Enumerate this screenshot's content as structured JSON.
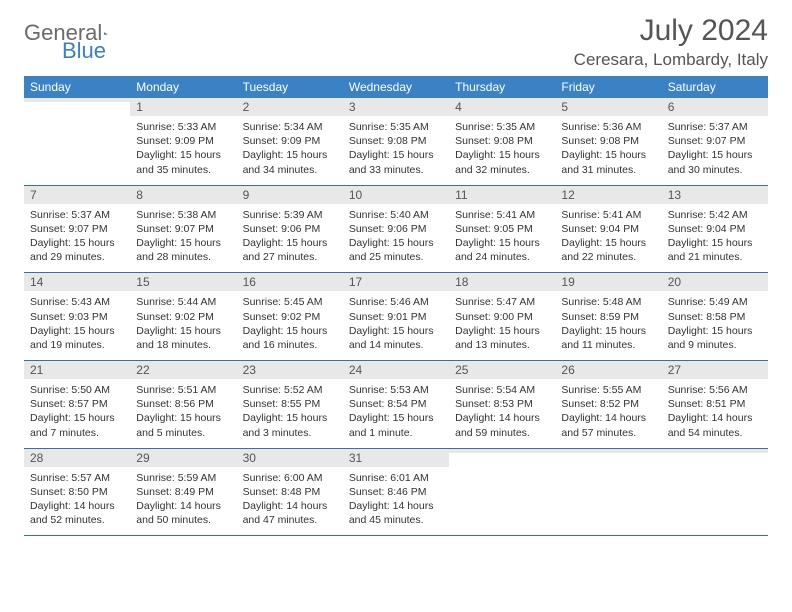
{
  "brand": {
    "name_general": "General",
    "name_blue": "Blue"
  },
  "title": "July 2024",
  "location": "Ceresara, Lombardy, Italy",
  "colors": {
    "header_bg": "#3b82c4",
    "header_text": "#ffffff",
    "daynum_bg": "#e8e8e8",
    "divider": "#3b6fa0",
    "muted_text": "#555555",
    "body_text": "#333333"
  },
  "day_headers": [
    "Sunday",
    "Monday",
    "Tuesday",
    "Wednesday",
    "Thursday",
    "Friday",
    "Saturday"
  ],
  "weeks": [
    [
      {
        "n": "",
        "sunrise": "",
        "sunset": "",
        "daylight": ""
      },
      {
        "n": "1",
        "sunrise": "Sunrise: 5:33 AM",
        "sunset": "Sunset: 9:09 PM",
        "daylight": "Daylight: 15 hours and 35 minutes."
      },
      {
        "n": "2",
        "sunrise": "Sunrise: 5:34 AM",
        "sunset": "Sunset: 9:09 PM",
        "daylight": "Daylight: 15 hours and 34 minutes."
      },
      {
        "n": "3",
        "sunrise": "Sunrise: 5:35 AM",
        "sunset": "Sunset: 9:08 PM",
        "daylight": "Daylight: 15 hours and 33 minutes."
      },
      {
        "n": "4",
        "sunrise": "Sunrise: 5:35 AM",
        "sunset": "Sunset: 9:08 PM",
        "daylight": "Daylight: 15 hours and 32 minutes."
      },
      {
        "n": "5",
        "sunrise": "Sunrise: 5:36 AM",
        "sunset": "Sunset: 9:08 PM",
        "daylight": "Daylight: 15 hours and 31 minutes."
      },
      {
        "n": "6",
        "sunrise": "Sunrise: 5:37 AM",
        "sunset": "Sunset: 9:07 PM",
        "daylight": "Daylight: 15 hours and 30 minutes."
      }
    ],
    [
      {
        "n": "7",
        "sunrise": "Sunrise: 5:37 AM",
        "sunset": "Sunset: 9:07 PM",
        "daylight": "Daylight: 15 hours and 29 minutes."
      },
      {
        "n": "8",
        "sunrise": "Sunrise: 5:38 AM",
        "sunset": "Sunset: 9:07 PM",
        "daylight": "Daylight: 15 hours and 28 minutes."
      },
      {
        "n": "9",
        "sunrise": "Sunrise: 5:39 AM",
        "sunset": "Sunset: 9:06 PM",
        "daylight": "Daylight: 15 hours and 27 minutes."
      },
      {
        "n": "10",
        "sunrise": "Sunrise: 5:40 AM",
        "sunset": "Sunset: 9:06 PM",
        "daylight": "Daylight: 15 hours and 25 minutes."
      },
      {
        "n": "11",
        "sunrise": "Sunrise: 5:41 AM",
        "sunset": "Sunset: 9:05 PM",
        "daylight": "Daylight: 15 hours and 24 minutes."
      },
      {
        "n": "12",
        "sunrise": "Sunrise: 5:41 AM",
        "sunset": "Sunset: 9:04 PM",
        "daylight": "Daylight: 15 hours and 22 minutes."
      },
      {
        "n": "13",
        "sunrise": "Sunrise: 5:42 AM",
        "sunset": "Sunset: 9:04 PM",
        "daylight": "Daylight: 15 hours and 21 minutes."
      }
    ],
    [
      {
        "n": "14",
        "sunrise": "Sunrise: 5:43 AM",
        "sunset": "Sunset: 9:03 PM",
        "daylight": "Daylight: 15 hours and 19 minutes."
      },
      {
        "n": "15",
        "sunrise": "Sunrise: 5:44 AM",
        "sunset": "Sunset: 9:02 PM",
        "daylight": "Daylight: 15 hours and 18 minutes."
      },
      {
        "n": "16",
        "sunrise": "Sunrise: 5:45 AM",
        "sunset": "Sunset: 9:02 PM",
        "daylight": "Daylight: 15 hours and 16 minutes."
      },
      {
        "n": "17",
        "sunrise": "Sunrise: 5:46 AM",
        "sunset": "Sunset: 9:01 PM",
        "daylight": "Daylight: 15 hours and 14 minutes."
      },
      {
        "n": "18",
        "sunrise": "Sunrise: 5:47 AM",
        "sunset": "Sunset: 9:00 PM",
        "daylight": "Daylight: 15 hours and 13 minutes."
      },
      {
        "n": "19",
        "sunrise": "Sunrise: 5:48 AM",
        "sunset": "Sunset: 8:59 PM",
        "daylight": "Daylight: 15 hours and 11 minutes."
      },
      {
        "n": "20",
        "sunrise": "Sunrise: 5:49 AM",
        "sunset": "Sunset: 8:58 PM",
        "daylight": "Daylight: 15 hours and 9 minutes."
      }
    ],
    [
      {
        "n": "21",
        "sunrise": "Sunrise: 5:50 AM",
        "sunset": "Sunset: 8:57 PM",
        "daylight": "Daylight: 15 hours and 7 minutes."
      },
      {
        "n": "22",
        "sunrise": "Sunrise: 5:51 AM",
        "sunset": "Sunset: 8:56 PM",
        "daylight": "Daylight: 15 hours and 5 minutes."
      },
      {
        "n": "23",
        "sunrise": "Sunrise: 5:52 AM",
        "sunset": "Sunset: 8:55 PM",
        "daylight": "Daylight: 15 hours and 3 minutes."
      },
      {
        "n": "24",
        "sunrise": "Sunrise: 5:53 AM",
        "sunset": "Sunset: 8:54 PM",
        "daylight": "Daylight: 15 hours and 1 minute."
      },
      {
        "n": "25",
        "sunrise": "Sunrise: 5:54 AM",
        "sunset": "Sunset: 8:53 PM",
        "daylight": "Daylight: 14 hours and 59 minutes."
      },
      {
        "n": "26",
        "sunrise": "Sunrise: 5:55 AM",
        "sunset": "Sunset: 8:52 PM",
        "daylight": "Daylight: 14 hours and 57 minutes."
      },
      {
        "n": "27",
        "sunrise": "Sunrise: 5:56 AM",
        "sunset": "Sunset: 8:51 PM",
        "daylight": "Daylight: 14 hours and 54 minutes."
      }
    ],
    [
      {
        "n": "28",
        "sunrise": "Sunrise: 5:57 AM",
        "sunset": "Sunset: 8:50 PM",
        "daylight": "Daylight: 14 hours and 52 minutes."
      },
      {
        "n": "29",
        "sunrise": "Sunrise: 5:59 AM",
        "sunset": "Sunset: 8:49 PM",
        "daylight": "Daylight: 14 hours and 50 minutes."
      },
      {
        "n": "30",
        "sunrise": "Sunrise: 6:00 AM",
        "sunset": "Sunset: 8:48 PM",
        "daylight": "Daylight: 14 hours and 47 minutes."
      },
      {
        "n": "31",
        "sunrise": "Sunrise: 6:01 AM",
        "sunset": "Sunset: 8:46 PM",
        "daylight": "Daylight: 14 hours and 45 minutes."
      },
      {
        "n": "",
        "sunrise": "",
        "sunset": "",
        "daylight": ""
      },
      {
        "n": "",
        "sunrise": "",
        "sunset": "",
        "daylight": ""
      },
      {
        "n": "",
        "sunrise": "",
        "sunset": "",
        "daylight": ""
      }
    ]
  ]
}
